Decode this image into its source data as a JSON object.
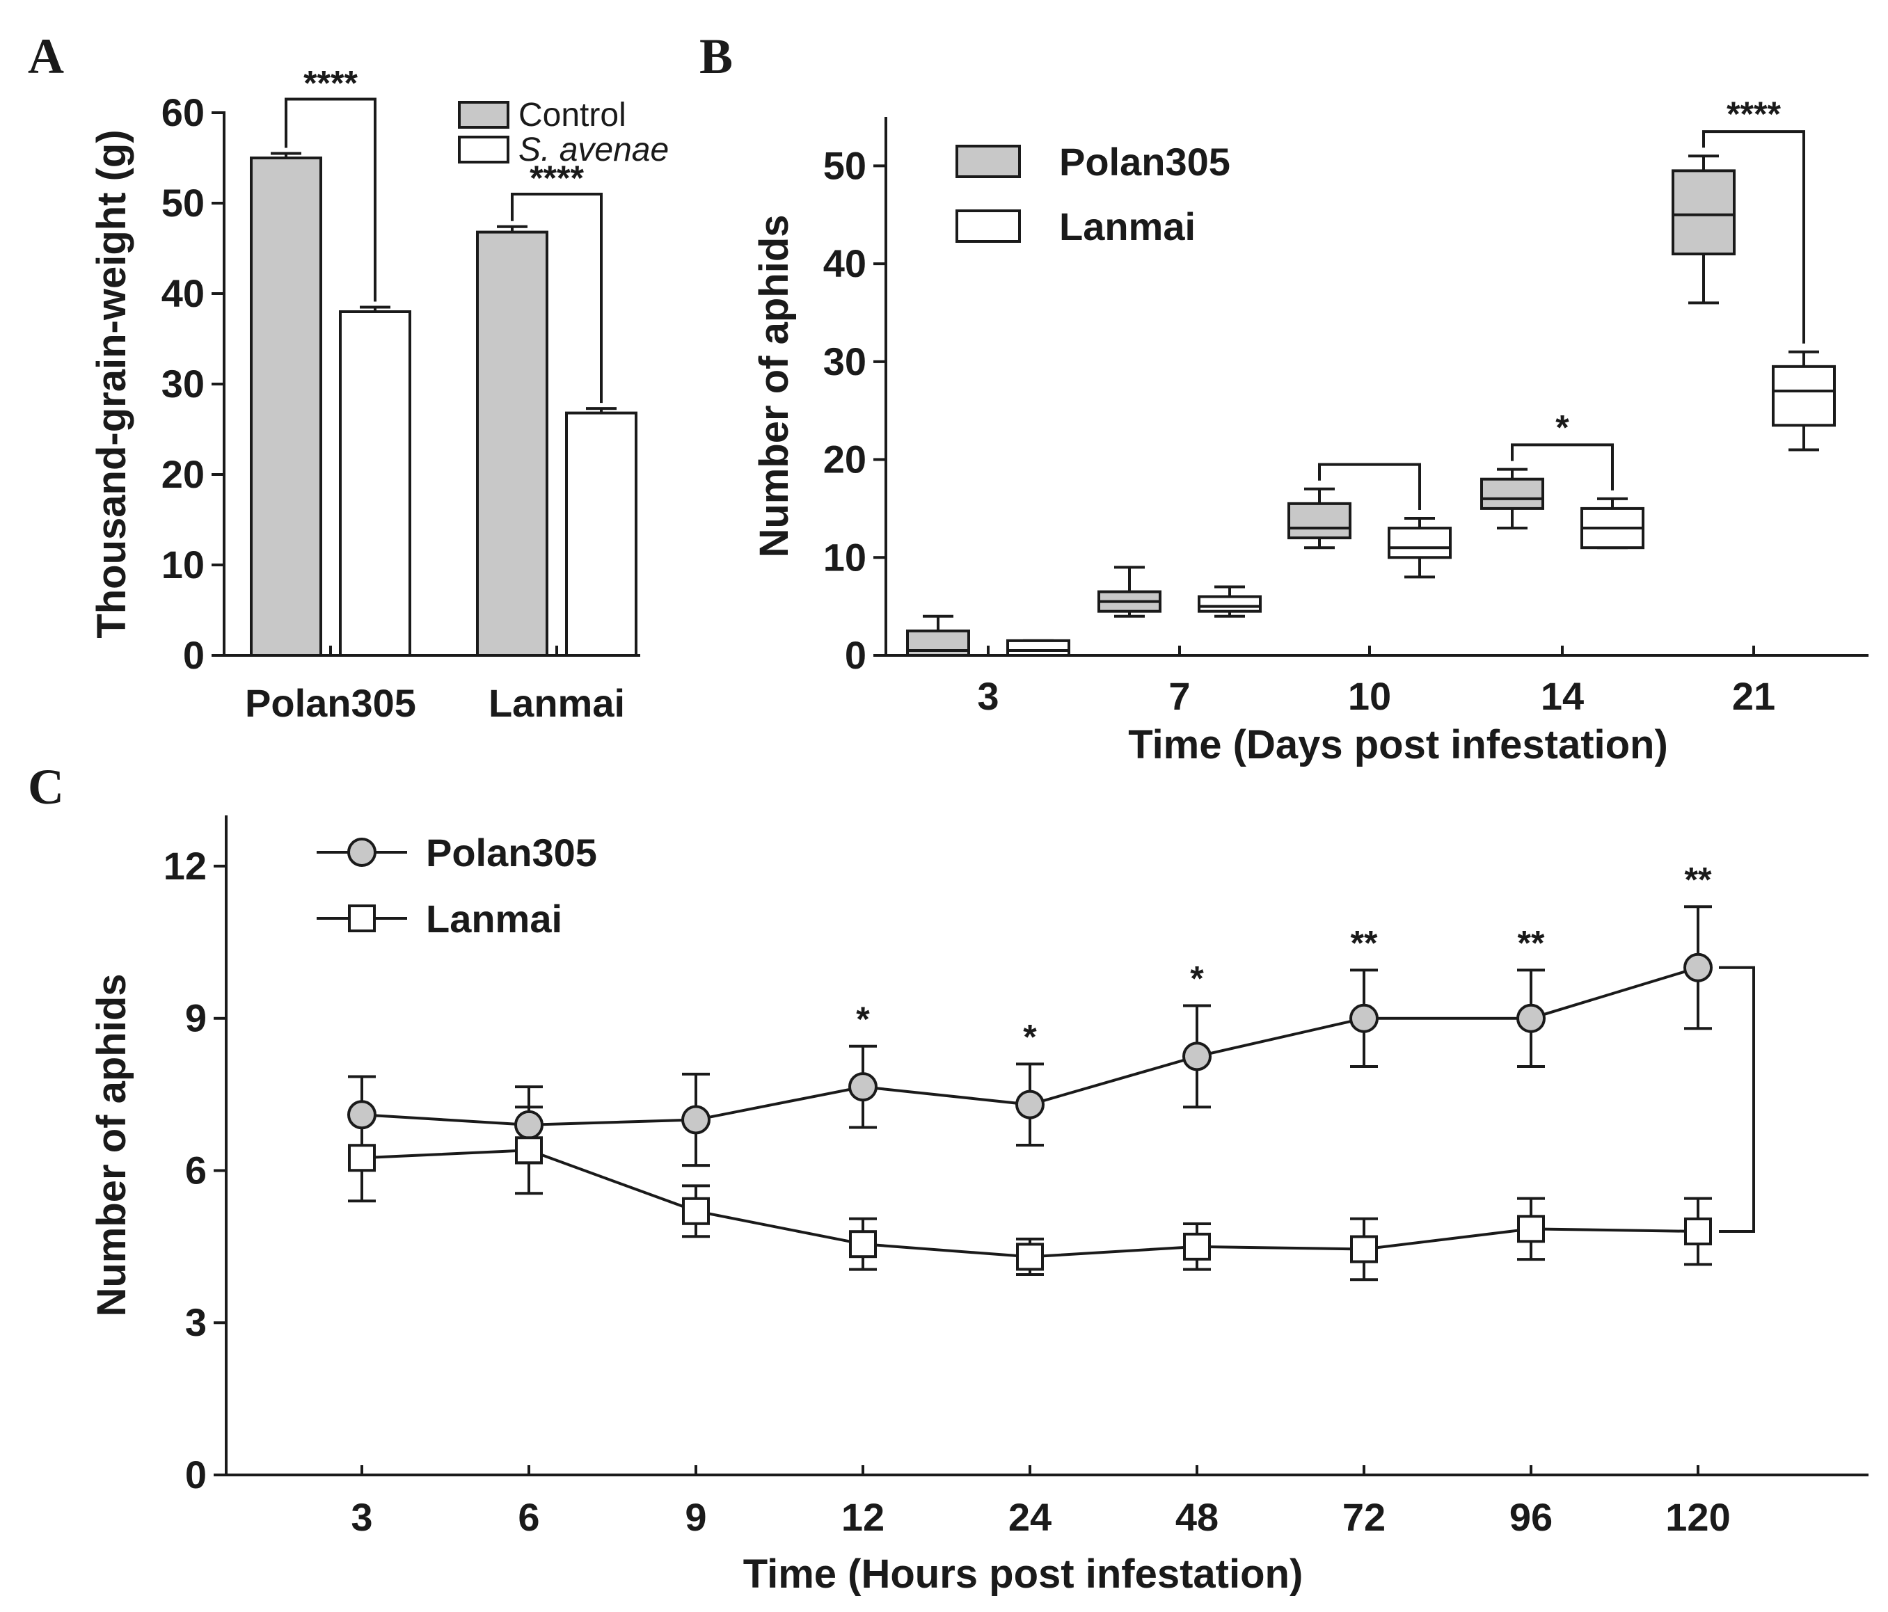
{
  "panels": {
    "A": "A",
    "B": "B",
    "C": "C"
  },
  "chart_data": [
    {
      "id": "A",
      "type": "bar",
      "title": "",
      "ylabel": "Thousand-grain-weight (g)",
      "xlabel": "",
      "ylim": [
        0,
        60
      ],
      "yticks": [
        0,
        10,
        20,
        30,
        40,
        50,
        60
      ],
      "categories": [
        "Polan305",
        "Lanmai"
      ],
      "series": [
        {
          "name": "Control",
          "color": "#c8c8c8",
          "values": [
            55,
            46.8
          ],
          "errors": [
            0.5,
            0.6
          ]
        },
        {
          "name": "S. avenae",
          "color": "#ffffff",
          "values": [
            38,
            26.8
          ],
          "errors": [
            0.5,
            0.5
          ]
        }
      ],
      "significance": [
        "****",
        "****"
      ]
    },
    {
      "id": "B",
      "type": "box",
      "ylabel": "Number of aphids",
      "xlabel": "Time (Days post infestation)",
      "ylim": [
        0,
        55
      ],
      "yticks": [
        0,
        10,
        20,
        30,
        40,
        50
      ],
      "categories": [
        "3",
        "7",
        "10",
        "14",
        "21"
      ],
      "series": [
        {
          "name": "Polan305",
          "color": "#c8c8c8",
          "boxes": [
            {
              "min": 0,
              "q1": 0,
              "median": 0.5,
              "q3": 2.5,
              "max": 4
            },
            {
              "min": 4,
              "q1": 4.5,
              "median": 5.5,
              "q3": 6.5,
              "max": 9
            },
            {
              "min": 11,
              "q1": 12,
              "median": 13,
              "q3": 15.5,
              "max": 17
            },
            {
              "min": 13,
              "q1": 15,
              "median": 16,
              "q3": 18,
              "max": 19
            },
            {
              "min": 36,
              "q1": 41,
              "median": 45,
              "q3": 49.5,
              "max": 51
            }
          ]
        },
        {
          "name": "Lanmai",
          "color": "#ffffff",
          "boxes": [
            {
              "min": 0,
              "q1": 0,
              "median": 0.5,
              "q3": 1.5,
              "max": 1.5
            },
            {
              "min": 4,
              "q1": 4.5,
              "median": 5,
              "q3": 6,
              "max": 7
            },
            {
              "min": 8,
              "q1": 10,
              "median": 11,
              "q3": 13,
              "max": 14
            },
            {
              "min": 11,
              "q1": 11,
              "median": 13,
              "q3": 15,
              "max": 16
            },
            {
              "min": 21,
              "q1": 23.5,
              "median": 27,
              "q3": 29.5,
              "max": 31
            }
          ]
        }
      ],
      "significance": [
        {
          "category": "10",
          "label": ""
        },
        {
          "category": "14",
          "label": "*"
        },
        {
          "category": "21",
          "label": "****"
        }
      ]
    },
    {
      "id": "C",
      "type": "line",
      "ylabel": "Number of aphids",
      "xlabel": "Time (Hours post infestation)",
      "ylim": [
        0,
        13
      ],
      "yticks": [
        0,
        3,
        6,
        9,
        12
      ],
      "categories": [
        "3",
        "6",
        "9",
        "12",
        "24",
        "48",
        "72",
        "96",
        "120"
      ],
      "series": [
        {
          "name": "Polan305",
          "marker": "circle",
          "color": "#c8c8c8",
          "values": [
            7.1,
            6.9,
            7.0,
            7.65,
            7.3,
            8.25,
            9.0,
            9.0,
            10.0
          ],
          "errors": [
            0.75,
            0.75,
            0.9,
            0.8,
            0.8,
            1.0,
            0.95,
            0.95,
            1.2
          ]
        },
        {
          "name": "Lanmai",
          "marker": "square",
          "color": "#ffffff",
          "values": [
            6.25,
            6.4,
            5.2,
            4.55,
            4.3,
            4.5,
            4.45,
            4.85,
            4.8
          ],
          "errors": [
            0.85,
            0.85,
            0.5,
            0.5,
            0.35,
            0.45,
            0.6,
            0.6,
            0.65
          ]
        }
      ],
      "significance": [
        "",
        "",
        "",
        "*",
        "*",
        "*",
        "**",
        "**",
        "**"
      ]
    }
  ]
}
